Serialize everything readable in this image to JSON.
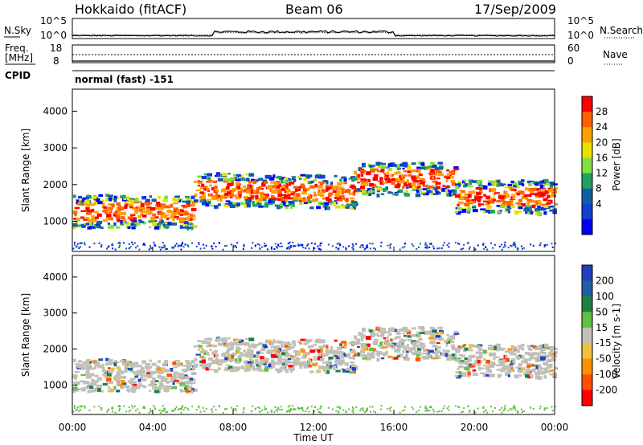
{
  "header": {
    "left_title": "Hokkaido (fitACF)",
    "center_title": "Beam 06",
    "date": "17/Sep/2009"
  },
  "top_panel": {
    "left_label": "N.Sky",
    "right_label": "N.Search",
    "left_ticks": [
      "10^5",
      "10^0"
    ],
    "right_ticks": [
      "10^5",
      "10^0"
    ]
  },
  "freq_panel": {
    "left_label_1": "Freq.",
    "left_label_2": "[MHz]",
    "right_label": "Nave",
    "left_ticks": [
      "18",
      "8"
    ],
    "right_ticks": [
      "60",
      "0"
    ]
  },
  "cpid": {
    "label": "CPID",
    "text": "normal (fast) -151"
  },
  "chart_data": [
    {
      "type": "heatmap",
      "name": "power",
      "ylabel": "Slant Range [km]",
      "yticks": [
        "4000",
        "3000",
        "2000",
        "1000"
      ],
      "colorbar": {
        "label": "Power [dB]",
        "ticks": [
          "28",
          "24",
          "20",
          "16",
          "12",
          "8",
          "4"
        ],
        "colors": [
          "#ff0000",
          "#ff6000",
          "#ffa000",
          "#e8e000",
          "#80e040",
          "#20a060",
          "#1060a0",
          "#1040d0",
          "#0000ff"
        ]
      }
    },
    {
      "type": "heatmap",
      "name": "velocity",
      "ylabel": "Slant Range [km]",
      "yticks": [
        "4000",
        "3000",
        "2000",
        "1000"
      ],
      "colorbar": {
        "label": "Velocity [m s-1]",
        "ticks": [
          "200",
          "100",
          "50",
          "15",
          "-15",
          "-50",
          "-100",
          "-200"
        ],
        "colors": [
          "#2040c0",
          "#2060a0",
          "#208040",
          "#60c040",
          "#c0c0b8",
          "#f0c040",
          "#ff9000",
          "#ff5000",
          "#ff0000"
        ]
      }
    }
  ],
  "x_axis": {
    "ticks": [
      "00:00",
      "04:00",
      "08:00",
      "12:00",
      "16:00",
      "20:00",
      "00:00"
    ],
    "label": "Time UT"
  }
}
